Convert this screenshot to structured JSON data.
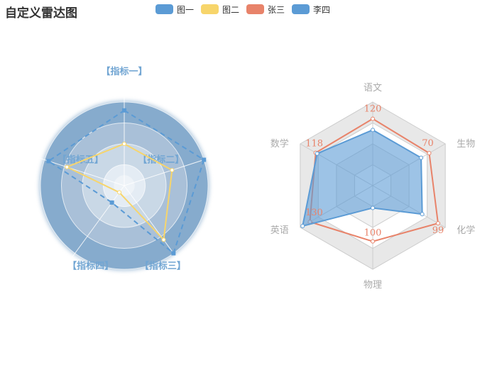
{
  "title": "自定义雷达图",
  "legend": [
    {
      "name": "图一",
      "color": "#5b9bd5"
    },
    {
      "name": "图二",
      "color": "#f7d56b"
    },
    {
      "name": "张三",
      "color": "#e8836a"
    },
    {
      "name": "李四",
      "color": "#5b9bd5"
    }
  ],
  "chart_data": [
    {
      "type": "radar",
      "shape": "circle",
      "indicators": [
        "【指标一】",
        "【指标二】",
        "【指标三】",
        "【指标四】",
        "【指标五】"
      ],
      "max": 100,
      "split_number": 4,
      "split_area_colors": [
        "#a9bfd6",
        "#a9bfd6",
        "#a9bfd6",
        "#7ea5c9"
      ],
      "series": [
        {
          "name": "图一",
          "values": [
            90,
            100,
            100,
            25,
            95
          ],
          "color": "#5b9bd5",
          "line_style": "dashed"
        },
        {
          "name": "图二",
          "values": [
            50,
            60,
            80,
            10,
            72
          ],
          "color": "#f7d56b",
          "line_style": "solid"
        }
      ]
    },
    {
      "type": "radar",
      "shape": "polygon",
      "indicators": [
        {
          "name": "语文",
          "max": 150
        },
        {
          "name": "生物",
          "max": 90
        },
        {
          "name": "化学",
          "max": 110
        },
        {
          "name": "物理",
          "max": 150
        },
        {
          "name": "英语",
          "max": 150
        },
        {
          "name": "数学",
          "max": 150
        }
      ],
      "split_number": 4,
      "series": [
        {
          "name": "张三",
          "values": [
            120,
            70,
            99,
            100,
            130,
            118
          ],
          "color": "#e8836a",
          "show_labels": true
        },
        {
          "name": "李四",
          "values": [
            100,
            60,
            75,
            40,
            145,
            115
          ],
          "color": "#5b9bd5",
          "show_labels": false
        }
      ]
    }
  ]
}
